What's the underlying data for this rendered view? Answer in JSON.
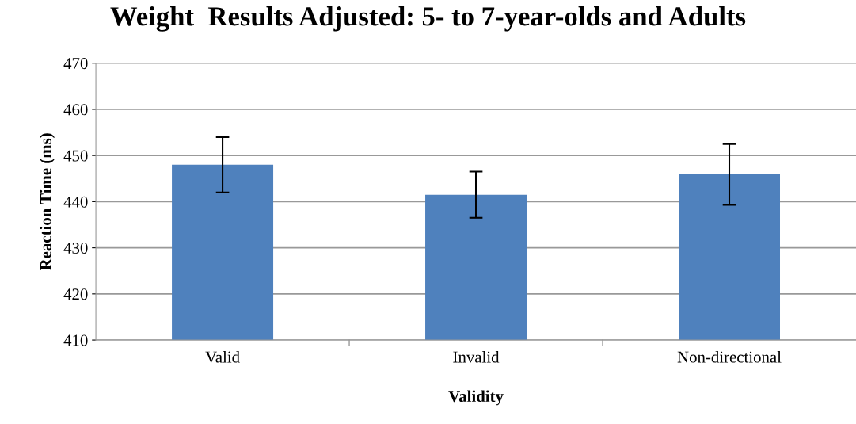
{
  "chart_data": {
    "type": "bar",
    "title": "Weight  Results Adjusted: 5- to 7-year-olds and Adults",
    "xlabel": "Validity",
    "ylabel": "Reaction Time (ms)",
    "categories": [
      "Valid",
      "Invalid",
      "Non-directional"
    ],
    "values": [
      448.0,
      441.5,
      445.9
    ],
    "errors": [
      6.0,
      5.0,
      6.6
    ],
    "color": "#4f81bd",
    "ylim": [
      410,
      470
    ],
    "yticks": [
      410,
      420,
      430,
      440,
      450,
      460,
      470
    ],
    "grid": "y"
  }
}
